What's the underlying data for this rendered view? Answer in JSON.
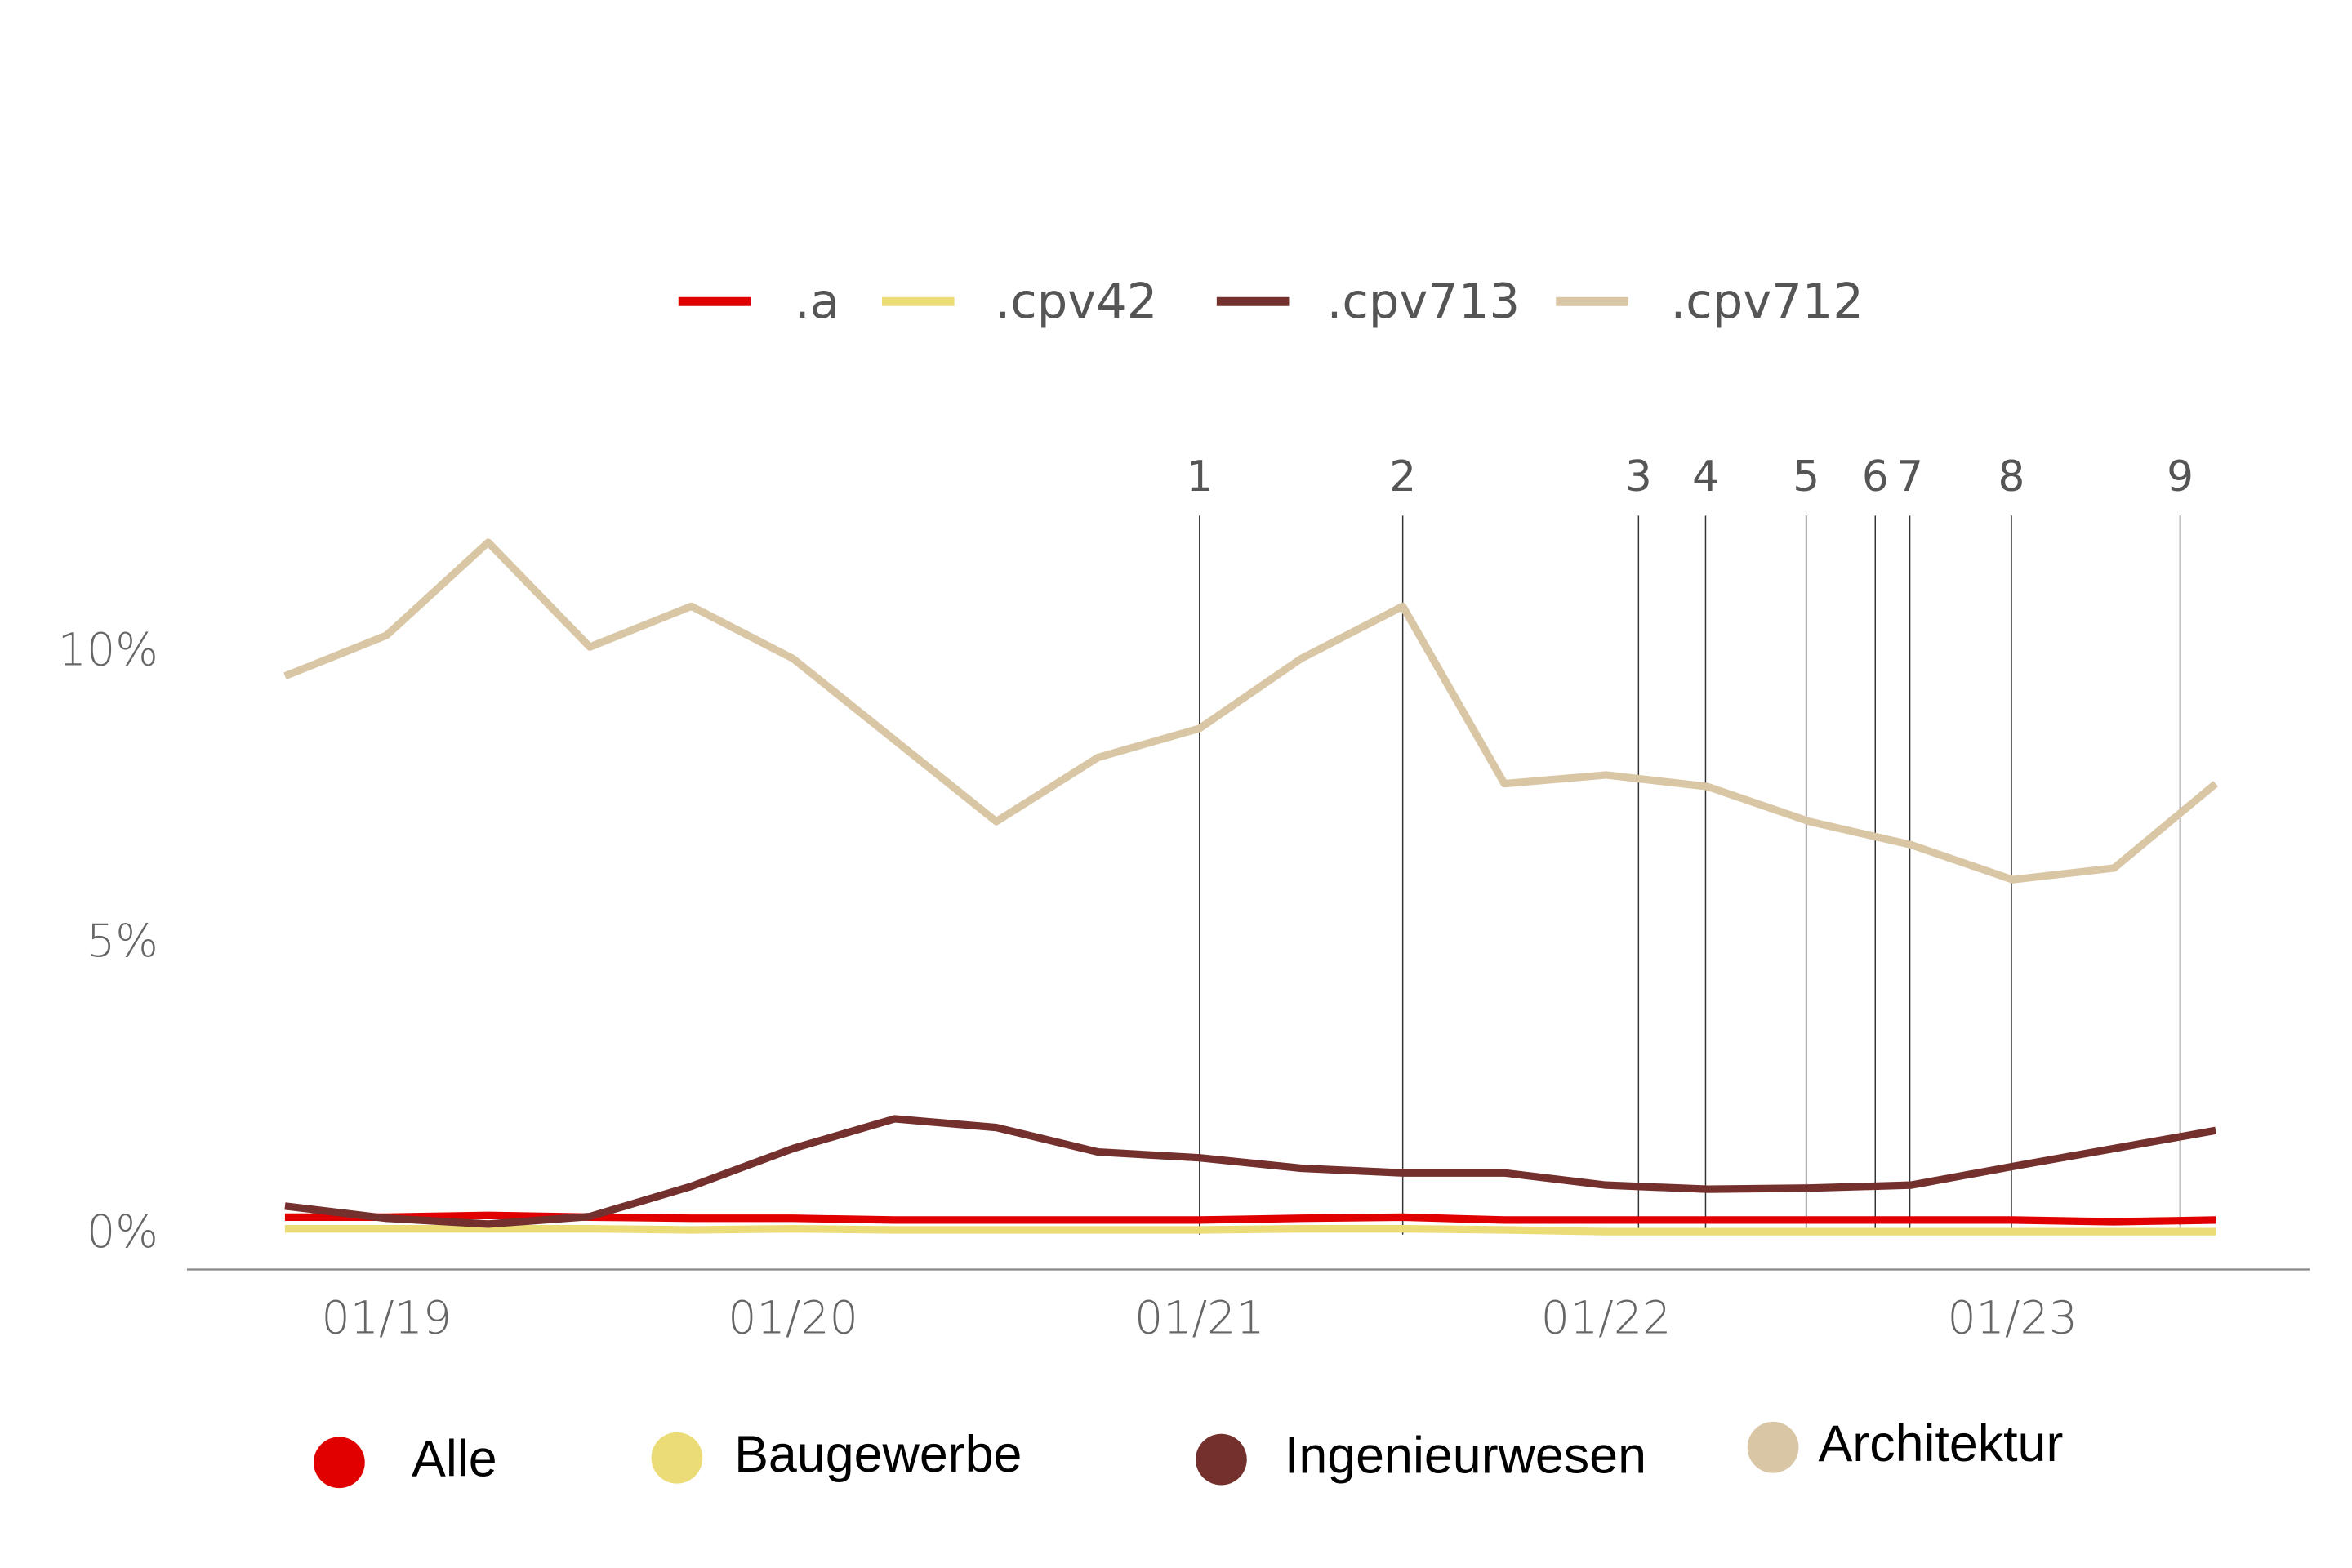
{
  "chart_data": {
    "type": "line",
    "categories": [
      null,
      "01/19",
      null,
      null,
      null,
      "01/20",
      null,
      null,
      null,
      "01/21",
      null,
      null,
      null,
      "01/22",
      null,
      null,
      null,
      "01/23",
      null,
      null
    ],
    "series": [
      {
        "name": ".a",
        "color": "#e00000",
        "values": [
          0.3,
          0.3,
          0.33,
          0.3,
          0.28,
          0.28,
          0.25,
          0.25,
          0.25,
          0.25,
          0.28,
          0.3,
          0.25,
          0.25,
          0.25,
          0.25,
          0.25,
          0.25,
          0.22,
          0.25
        ]
      },
      {
        "name": ".cpv42",
        "color": "#ecdc78",
        "values": [
          0.1,
          0.1,
          0.1,
          0.1,
          0.08,
          0.1,
          0.08,
          0.08,
          0.08,
          0.08,
          0.1,
          0.1,
          0.08,
          0.05,
          0.05,
          0.05,
          0.05,
          0.05,
          0.05,
          0.05
        ]
      },
      {
        "name": ".cpv713",
        "color": "#73302d",
        "values": [
          0.49,
          0.28,
          0.18,
          0.31,
          0.83,
          1.48,
          1.99,
          1.84,
          1.42,
          1.32,
          1.14,
          1.06,
          1.06,
          0.85,
          0.78,
          0.8,
          0.85,
          1.17,
          1.48,
          1.79
        ]
      },
      {
        "name": ".cpv712",
        "color": "#d9c6a5",
        "values": [
          9.6,
          10.3,
          11.9,
          10.1,
          10.8,
          9.9,
          8.5,
          7.1,
          8.2,
          8.7,
          9.9,
          10.8,
          7.75,
          7.9,
          7.7,
          7.1,
          6.7,
          6.1,
          6.3,
          7.75
        ]
      }
    ],
    "bottom_legend": [
      "Alle",
      "Baugewerbe",
      "Ingenieurwesen",
      "Architektur"
    ],
    "ylim": [
      -0.6,
      12.5
    ],
    "yticks": [
      {
        "value": 0,
        "label": "0%"
      },
      {
        "value": 5,
        "label": "5%"
      },
      {
        "value": 10,
        "label": "10%"
      }
    ],
    "grid": false,
    "annotations": [
      {
        "text": "1",
        "x": 9
      },
      {
        "text": "2",
        "x": 11
      },
      {
        "text": "3",
        "x": 13.32
      },
      {
        "text": "4",
        "x": 13.98
      },
      {
        "text": "5",
        "x": 14.97
      },
      {
        "text": "6",
        "x": 15.65
      },
      {
        "text": "7",
        "x": 15.99
      },
      {
        "text": "8",
        "x": 16.99
      },
      {
        "text": "9",
        "x": 18.65
      }
    ]
  }
}
